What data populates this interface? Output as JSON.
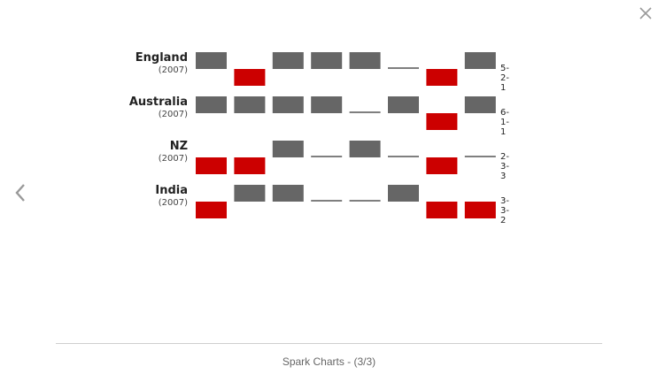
{
  "colors": {
    "win": "#666666",
    "loss": "#cc0000",
    "draw": "#555555"
  },
  "icons": {
    "close": "close-icon",
    "previous": "chevron-left-icon"
  },
  "caption": "Spark Charts - (3/3)",
  "chart_data": {
    "type": "bar",
    "encoding": {
      "win": 1,
      "draw": 0,
      "loss": -1
    },
    "rows": [
      {
        "name": "England",
        "year": "(2007)",
        "record": "5-2-1",
        "results": [
          1,
          -1,
          1,
          1,
          1,
          0,
          -1,
          1
        ]
      },
      {
        "name": "Australia",
        "year": "(2007)",
        "record": "6-1-1",
        "results": [
          1,
          1,
          1,
          1,
          0,
          1,
          -1,
          1
        ]
      },
      {
        "name": "NZ",
        "year": "(2007)",
        "record": "2-3-3",
        "results": [
          -1,
          -1,
          1,
          0,
          1,
          0,
          -1,
          0
        ]
      },
      {
        "name": "India",
        "year": "(2007)",
        "record": "3-3-2",
        "results": [
          -1,
          1,
          1,
          0,
          0,
          1,
          -1,
          -1
        ]
      }
    ]
  }
}
